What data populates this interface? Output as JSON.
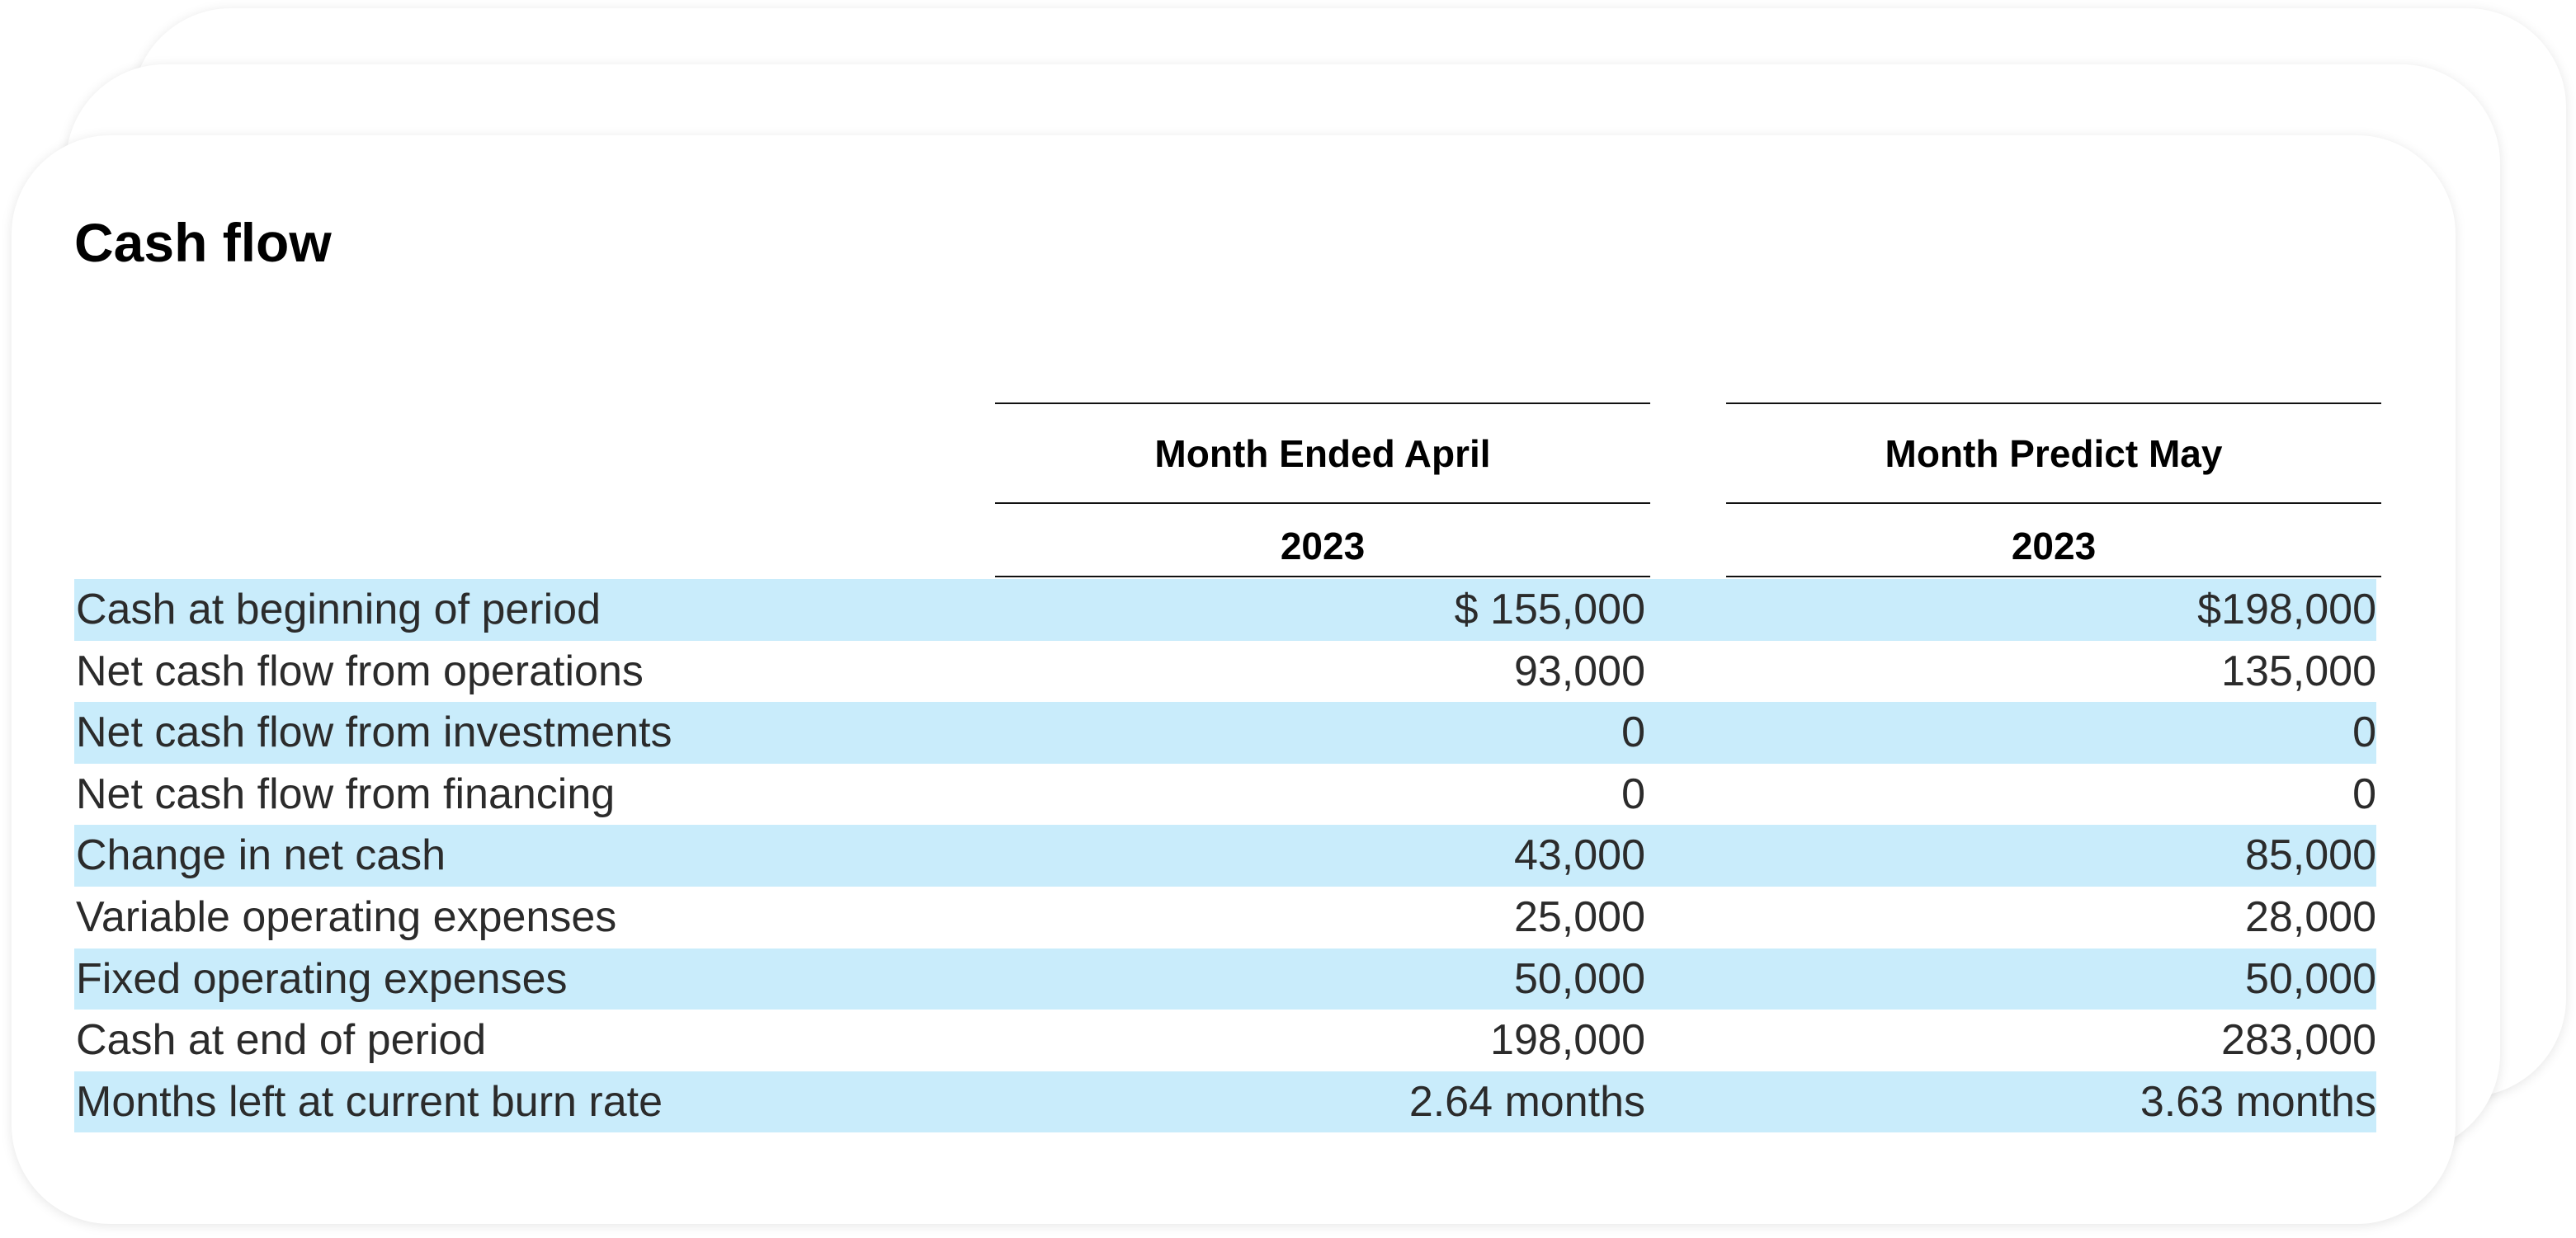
{
  "title": "Cash flow",
  "columns": [
    {
      "month": "Month Ended April",
      "year": "2023"
    },
    {
      "month": "Month Predict May",
      "year": "2023"
    }
  ],
  "rows": [
    {
      "label": "Cash at beginning of period",
      "values": [
        "$ 155,000",
        "$198,000"
      ]
    },
    {
      "label": "Net cash flow from operations",
      "values": [
        "93,000",
        "135,000"
      ]
    },
    {
      "label": "Net cash flow from investments",
      "values": [
        "0",
        "0"
      ]
    },
    {
      "label": "Net cash flow from financing",
      "values": [
        "0",
        "0"
      ]
    },
    {
      "label": "Change in net cash",
      "values": [
        "43,000",
        "85,000"
      ]
    },
    {
      "label": "Variable operating expenses",
      "values": [
        "25,000",
        "28,000"
      ]
    },
    {
      "label": "Fixed operating expenses",
      "values": [
        "50,000",
        "50,000"
      ]
    },
    {
      "label": "Cash at end of period",
      "values": [
        "198,000",
        "283,000"
      ]
    },
    {
      "label": "Months left at current burn rate",
      "values": [
        "2.64 months",
        "3.63 months"
      ]
    }
  ],
  "colors": {
    "row_shade": "#c9ecfb",
    "rule": "#111111",
    "text": "#2b2b2b"
  }
}
